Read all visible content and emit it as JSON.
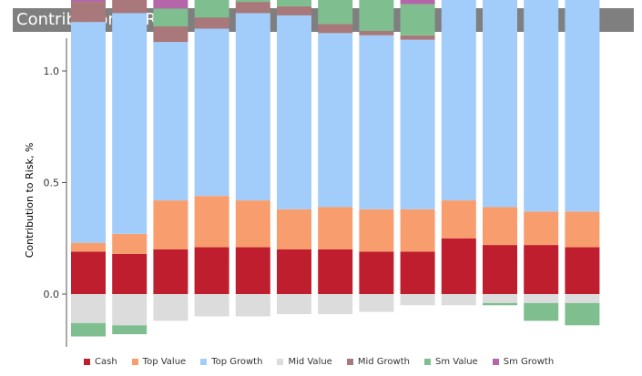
{
  "chart_data": {
    "type": "bar",
    "stacked": true,
    "title": "Contribution to Risk",
    "ylabel": "Contribution to Risk, %",
    "xlabel": "",
    "ylim": [
      -0.3,
      2.25
    ],
    "yticks": [
      "0.0",
      "0.5",
      "1.0",
      "1.5",
      "2.0"
    ],
    "legend_position": "bottom",
    "grid": false,
    "categories": [
      "",
      "",
      "",
      "",
      "",
      "",
      "",
      "",
      "",
      "",
      "",
      "",
      ""
    ],
    "series": [
      {
        "name": "Cash",
        "color": "#be1e2d",
        "values": [
          0.19,
          0.18,
          0.2,
          0.21,
          0.21,
          0.2,
          0.2,
          0.19,
          0.19,
          0.25,
          0.22,
          0.22,
          0.21
        ]
      },
      {
        "name": "Top Value",
        "color": "#f89e6e",
        "values": [
          0.04,
          0.09,
          0.22,
          0.23,
          0.21,
          0.18,
          0.19,
          0.19,
          0.19,
          0.17,
          0.17,
          0.15,
          0.16
        ]
      },
      {
        "name": "Top Growth",
        "color": "#a2cdfa",
        "values": [
          0.99,
          0.99,
          0.71,
          0.75,
          0.84,
          0.87,
          0.78,
          0.78,
          0.76,
          1.12,
          1.19,
          1.47,
          1.55
        ]
      },
      {
        "name": "Mid Value",
        "color": "#dcdcdc",
        "values": [
          -0.13,
          -0.14,
          -0.12,
          -0.1,
          -0.1,
          -0.09,
          -0.09,
          -0.08,
          -0.05,
          -0.05,
          -0.04,
          -0.04,
          -0.04
        ]
      },
      {
        "name": "Mid Growth",
        "color": "#a8787a",
        "values": [
          0.09,
          0.07,
          0.07,
          0.05,
          0.05,
          0.04,
          0.04,
          0.02,
          0.02,
          0.0,
          0.0,
          0.0,
          0.0
        ]
      },
      {
        "name": "Sm Value",
        "color": "#7fbf8f",
        "values": [
          -0.06,
          -0.04,
          0.08,
          0.08,
          0.06,
          0.06,
          0.14,
          0.16,
          0.14,
          0.05,
          -0.01,
          -0.08,
          -0.1
        ]
      },
      {
        "name": "Sm Growth",
        "color": "#b566a8",
        "values": [
          0.38,
          0.38,
          0.41,
          0.39,
          0.41,
          0.5,
          0.51,
          0.44,
          0.43,
          0.39,
          0.4,
          0.37,
          0.26
        ]
      }
    ]
  }
}
